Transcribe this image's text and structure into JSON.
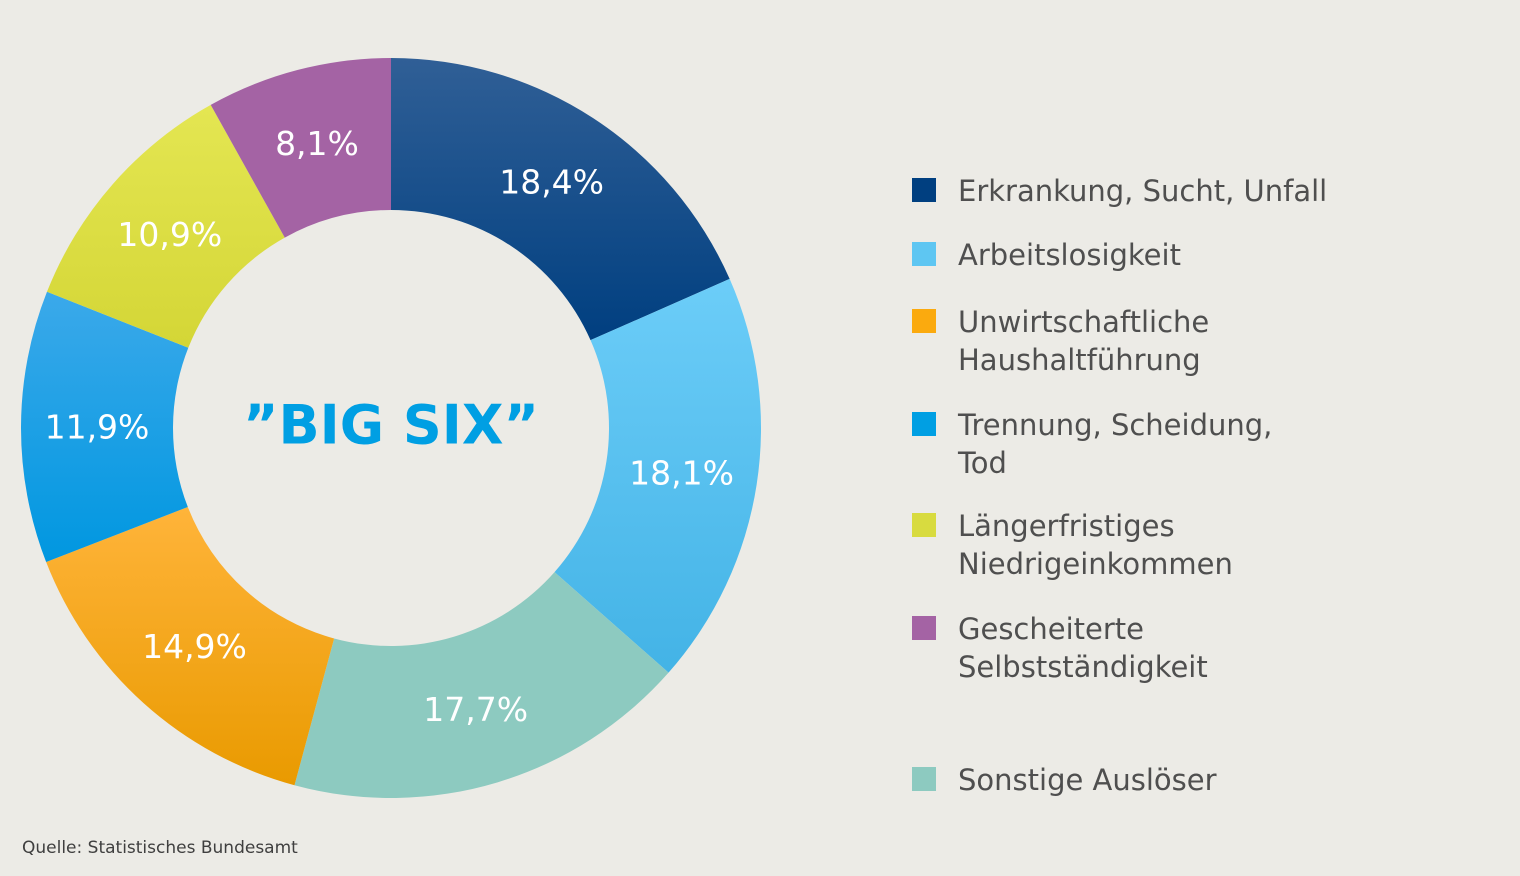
{
  "chart_data": {
    "type": "pie",
    "variant": "donut",
    "center_title": "”BIG SIX”",
    "slices": [
      {
        "label": "Erkrankung, Sucht, Unfall",
        "value": 18.4,
        "display": "18,4%",
        "color": "#003F80",
        "color_light": "#305F96"
      },
      {
        "label": "Arbeitslosigkeit",
        "value": 18.1,
        "display": "18,1%",
        "color": "#43B3E6",
        "color_light": "#6CCDF8"
      },
      {
        "label": "Sonstige Auslöser",
        "value": 17.7,
        "display": "17,7%",
        "color": "#8DCAC0",
        "color_light": "#8DCAC0"
      },
      {
        "label": "Unwirtschaftliche Haushaltführung",
        "value": 14.9,
        "display": "14,9%",
        "color": "#E99A00",
        "color_light": "#FFB43A"
      },
      {
        "label": "Trennung, Scheidung, Tod",
        "value": 11.9,
        "display": "11,9%",
        "color": "#0097E0",
        "color_light": "#3BA9EA"
      },
      {
        "label": "Längerfristiges Niedrigeinkommen",
        "value": 10.9,
        "display": "10,9%",
        "color": "#D4D636",
        "color_light": "#E4E652"
      },
      {
        "label": "Gescheiterte Selbstständigkeit",
        "value": 8.1,
        "display": "8,1%",
        "color": "#A463A4",
        "color_light": "#A463A4"
      }
    ]
  },
  "legend": {
    "items": [
      {
        "line1": "Erkrankung, Sucht, Unfall",
        "line2": "",
        "color": "#003F80"
      },
      {
        "line1": "Arbeitslosigkeit",
        "line2": "",
        "color": "#5EC6F2"
      },
      {
        "line1": "Unwirtschaftliche",
        "line2": "Haushaltführung",
        "color": "#FBAA0E"
      },
      {
        "line1": "Trennung, Scheidung,",
        "line2": "Tod",
        "color": "#009FE3"
      },
      {
        "line1": "Längerfristiges",
        "line2": "Niedrigeinkommen",
        "color": "#D8DB3F"
      },
      {
        "line1": "Gescheiterte",
        "line2": "Selbstständigkeit",
        "color": "#A463A4"
      },
      {
        "line1": "Sonstige Auslöser",
        "line2": "",
        "color": "#8DCAC0"
      }
    ]
  },
  "center_color": "#009FE3",
  "source": "Quelle: Statistisches Bundesamt"
}
